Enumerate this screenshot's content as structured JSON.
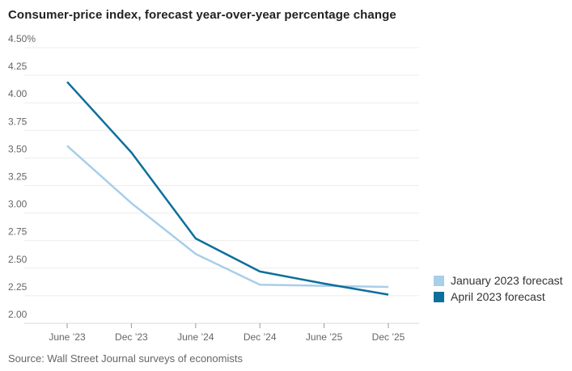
{
  "title": "Consumer-price index, forecast year-over-year percentage change",
  "source": "Source: Wall Street Journal surveys of economists",
  "legend": [
    {
      "label": "January 2023 forecast",
      "color": "#a8cee9"
    },
    {
      "label": "April 2023 forecast",
      "color": "#0d6f9b"
    }
  ],
  "chart_data": {
    "type": "line",
    "title": "Consumer-price index, forecast year-over-year percentage change",
    "categories": [
      "June ’23",
      "Dec ’23",
      "June ’24",
      "Dec ’24",
      "June ’25",
      "Dec ’25"
    ],
    "series": [
      {
        "name": "January 2023 forecast",
        "color": "#a8cee9",
        "values": [
          3.61,
          3.09,
          2.63,
          2.35,
          2.34,
          2.33
        ]
      },
      {
        "name": "April 2023 forecast",
        "color": "#0d6f9b",
        "values": [
          4.19,
          3.55,
          2.77,
          2.47,
          2.36,
          2.26
        ]
      }
    ],
    "xlabel": "",
    "ylabel": "",
    "ylim": [
      2.0,
      4.5
    ],
    "y_tick_values": [
      4.5,
      4.25,
      4.0,
      3.75,
      3.5,
      3.25,
      3.0,
      2.75,
      2.5,
      2.25,
      2.0
    ],
    "y_ticks": [
      "4.50%",
      "4.25",
      "4.00",
      "3.75",
      "3.50",
      "3.25",
      "3.00",
      "2.75",
      "2.50",
      "2.25",
      "2.00"
    ],
    "grid": true,
    "legend_position": "right"
  },
  "colors": {
    "gridline": "#ececec",
    "baseline": "#d9d9d9",
    "tick": "#999999",
    "axis_text": "#666666"
  }
}
